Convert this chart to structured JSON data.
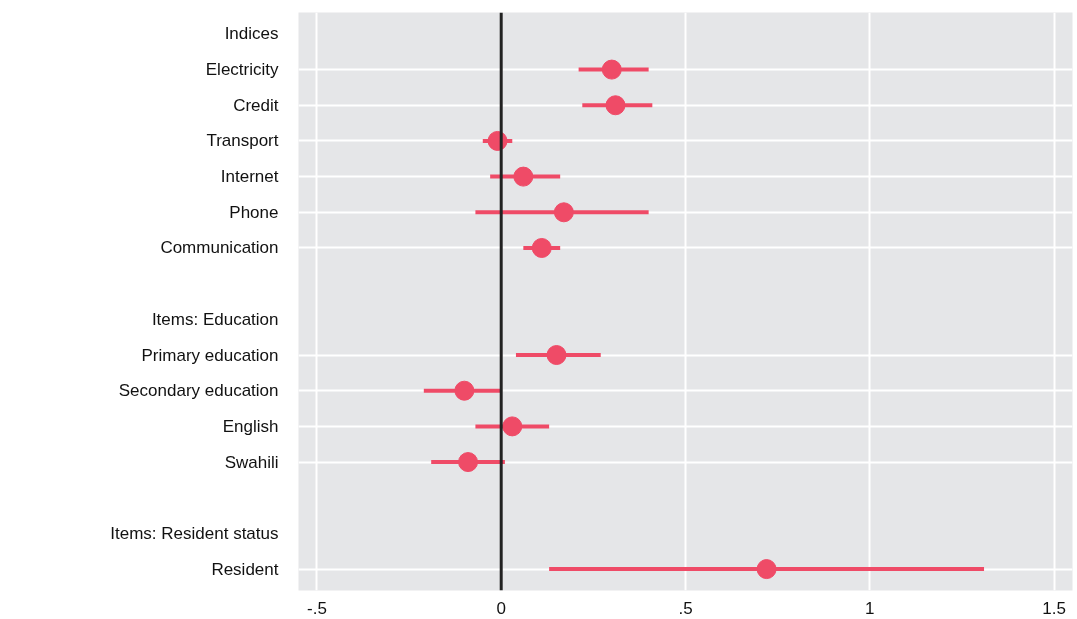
{
  "chart_data": {
    "type": "scatter",
    "orientation": "horizontal",
    "categories": [
      "Indices",
      "Electricity",
      "Credit",
      "Transport",
      "Internet",
      "Phone",
      "Communication",
      null,
      "Items: Education",
      "Primary education",
      "Secondary education",
      "English",
      "Swahili",
      null,
      "Items: Resident status",
      "Resident"
    ],
    "series": [
      {
        "color": "#ef4b67",
        "values": [
          null,
          0.3,
          0.31,
          -0.01,
          0.06,
          0.17,
          0.11,
          null,
          null,
          0.15,
          -0.1,
          0.03,
          -0.09,
          null,
          null,
          0.72
        ],
        "errors": [
          null,
          [
            0.21,
            0.4
          ],
          [
            0.22,
            0.41
          ],
          [
            -0.05,
            0.03
          ],
          [
            -0.03,
            0.16
          ],
          [
            -0.07,
            0.4
          ],
          [
            0.06,
            0.16
          ],
          null,
          null,
          [
            0.04,
            0.27
          ],
          [
            -0.21,
            0.0
          ],
          [
            -0.07,
            0.13
          ],
          [
            -0.19,
            0.01
          ],
          null,
          null,
          [
            0.13,
            1.31
          ]
        ]
      }
    ],
    "xlim": [
      -0.55,
      1.55
    ],
    "xticks": [
      {
        "value": -0.5,
        "label": "-.5"
      },
      0,
      {
        "value": 0.5,
        "label": ".5"
      },
      1,
      1.5
    ],
    "ref_lines": [
      {
        "axis": "x",
        "value": 0,
        "color": "#222222"
      }
    ],
    "grid": true,
    "marker": "circle"
  }
}
